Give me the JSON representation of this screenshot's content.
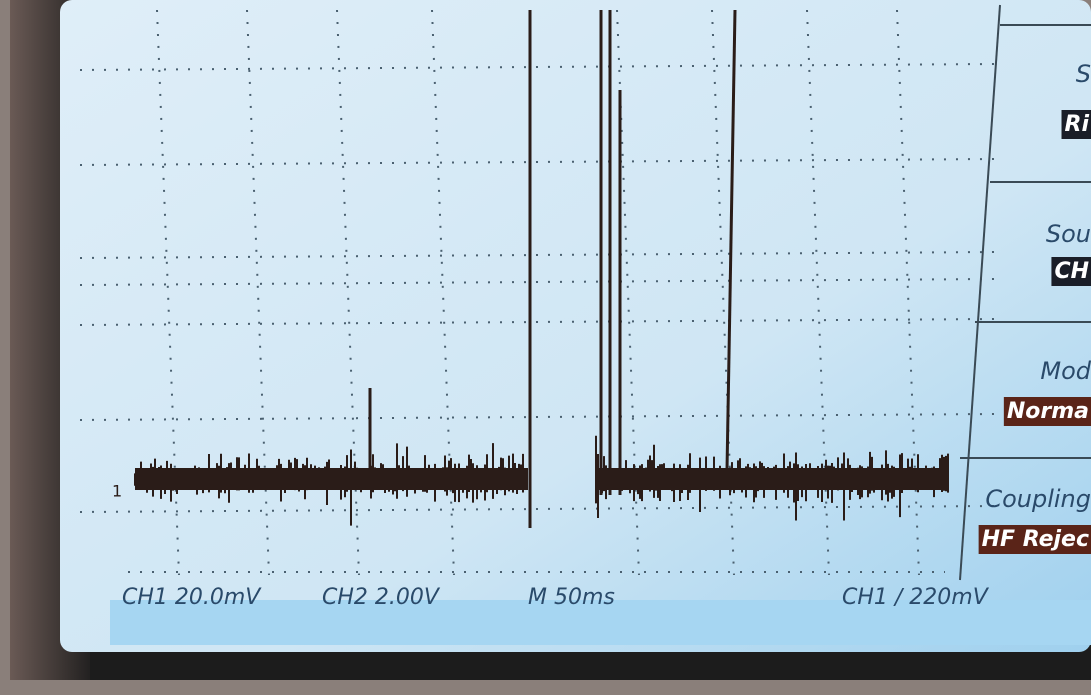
{
  "status_bar": {
    "ch1_scale": "CH1 20.0mV",
    "ch2_scale": "CH2 2.00V",
    "timebase": "M 50ms",
    "trigger": "CH1 ∕ 220mV"
  },
  "channel_marker": "1",
  "menu": [
    {
      "label": "S",
      "value": "Ri"
    },
    {
      "label": "Sou",
      "value": "CH"
    },
    {
      "label": "Mod",
      "value": "Norma"
    },
    {
      "label": "Coupling",
      "value": "HF Rejec"
    }
  ]
}
